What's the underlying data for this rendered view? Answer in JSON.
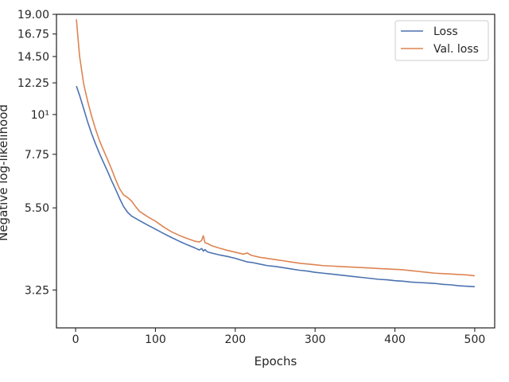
{
  "chart_data": {
    "type": "line",
    "xlabel": "Epochs",
    "ylabel": "Negative log-likelihood",
    "xlim": [
      -24,
      525
    ],
    "ylim": [
      2.55,
      19.0
    ],
    "yscale": "log",
    "xticks": [
      0,
      100,
      200,
      300,
      400,
      500
    ],
    "xtick_labels": [
      "0",
      "100",
      "200",
      "300",
      "400",
      "500"
    ],
    "yticks": [
      19.0,
      16.75,
      14.5,
      12.25,
      10,
      7.75,
      5.5,
      3.25
    ],
    "ytick_labels": [
      "19.00",
      "16.75",
      "14.50",
      "12.25",
      "10¹",
      "7.75",
      "5.50",
      "3.25"
    ],
    "grid": false,
    "legend": "top-right",
    "series": [
      {
        "name": "Loss",
        "color": "#4c72b0",
        "x": [
          1,
          5,
          10,
          15,
          20,
          25,
          30,
          35,
          40,
          45,
          50,
          55,
          60,
          65,
          70,
          80,
          90,
          100,
          110,
          120,
          130,
          140,
          150,
          155,
          158,
          160,
          162,
          165,
          170,
          180,
          190,
          200,
          210,
          215,
          220,
          230,
          240,
          250,
          260,
          270,
          280,
          290,
          300,
          310,
          320,
          330,
          340,
          350,
          360,
          370,
          380,
          390,
          400,
          410,
          420,
          430,
          440,
          450,
          460,
          470,
          480,
          490,
          500
        ],
        "y": [
          12.0,
          11.3,
          10.4,
          9.55,
          8.85,
          8.28,
          7.78,
          7.35,
          6.95,
          6.55,
          6.2,
          5.85,
          5.55,
          5.35,
          5.22,
          5.07,
          4.93,
          4.8,
          4.67,
          4.55,
          4.44,
          4.34,
          4.25,
          4.2,
          4.24,
          4.17,
          4.21,
          4.15,
          4.12,
          4.07,
          4.03,
          3.98,
          3.92,
          3.89,
          3.88,
          3.84,
          3.8,
          3.78,
          3.75,
          3.72,
          3.69,
          3.67,
          3.64,
          3.62,
          3.6,
          3.58,
          3.56,
          3.54,
          3.52,
          3.5,
          3.48,
          3.47,
          3.45,
          3.44,
          3.42,
          3.41,
          3.4,
          3.39,
          3.37,
          3.36,
          3.34,
          3.33,
          3.32
        ]
      },
      {
        "name": "Val. loss",
        "color": "#dd8452",
        "x": [
          1,
          3,
          5,
          10,
          15,
          20,
          25,
          30,
          35,
          40,
          45,
          50,
          55,
          60,
          65,
          70,
          75,
          80,
          90,
          100,
          110,
          120,
          130,
          140,
          150,
          155,
          158,
          160,
          162,
          165,
          170,
          180,
          190,
          200,
          210,
          215,
          220,
          230,
          240,
          250,
          260,
          270,
          280,
          290,
          300,
          310,
          320,
          330,
          340,
          350,
          360,
          370,
          380,
          390,
          400,
          410,
          420,
          430,
          440,
          450,
          460,
          470,
          480,
          490,
          500
        ],
        "y": [
          18.4,
          16.3,
          14.5,
          12.2,
          10.9,
          9.9,
          9.1,
          8.45,
          7.95,
          7.5,
          7.05,
          6.6,
          6.22,
          5.98,
          5.88,
          5.75,
          5.55,
          5.38,
          5.2,
          5.05,
          4.87,
          4.72,
          4.61,
          4.52,
          4.44,
          4.42,
          4.47,
          4.6,
          4.4,
          4.38,
          4.32,
          4.25,
          4.19,
          4.14,
          4.09,
          4.12,
          4.06,
          4.01,
          3.98,
          3.95,
          3.92,
          3.89,
          3.86,
          3.84,
          3.82,
          3.8,
          3.79,
          3.78,
          3.77,
          3.76,
          3.75,
          3.74,
          3.73,
          3.72,
          3.71,
          3.7,
          3.68,
          3.66,
          3.64,
          3.62,
          3.61,
          3.6,
          3.59,
          3.58,
          3.56
        ]
      }
    ]
  }
}
